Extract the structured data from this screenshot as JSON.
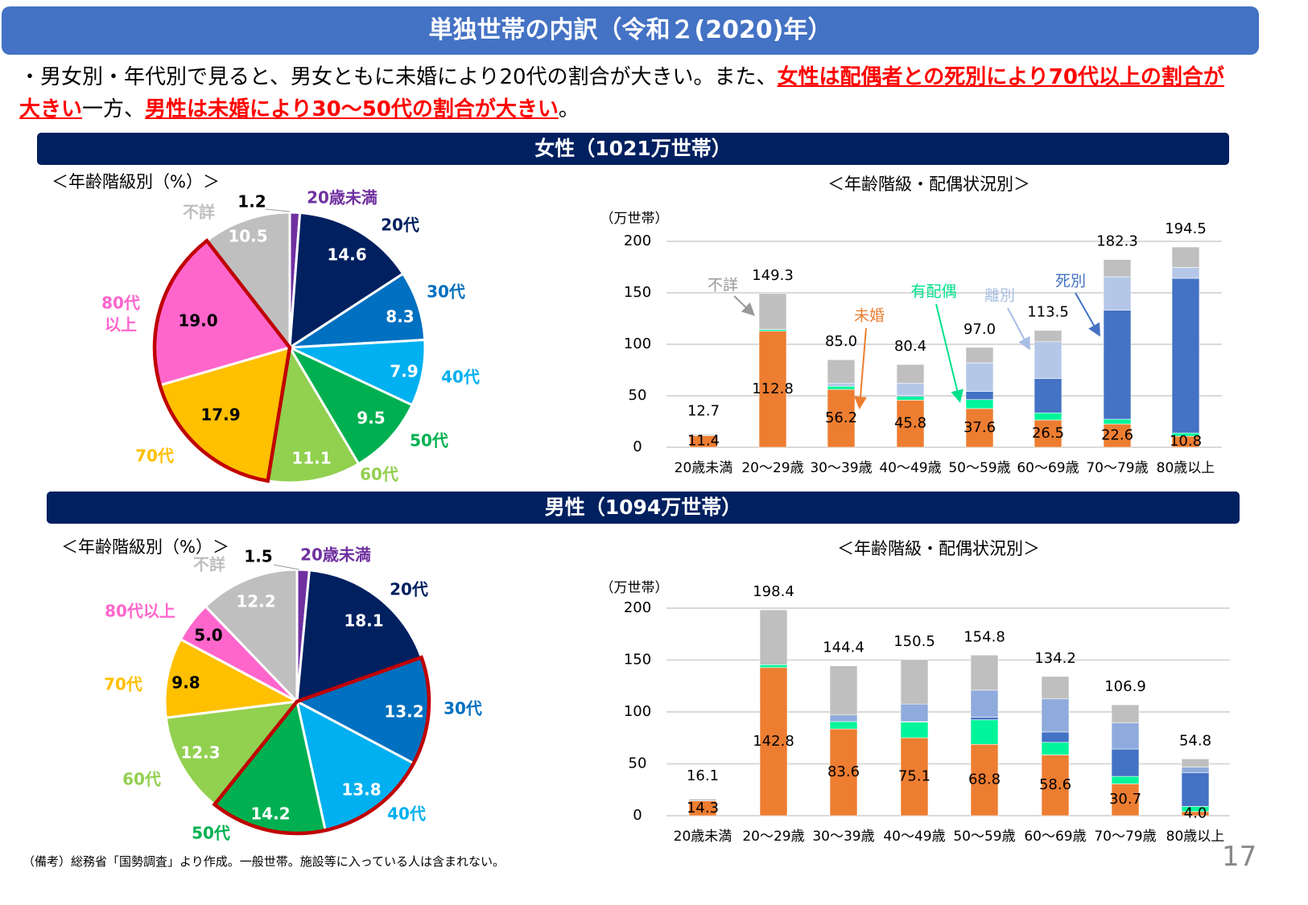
{
  "title": "単独世帯の内訳（令和２(2020)年）",
  "summary": {
    "plain1": "・男女別・年代別で見ると、男女ともに未婚により20代の割合が大きい。また、",
    "red1": "女性は配偶者との死別により70代以上の割合が大きい",
    "plain2": "一方、",
    "red2": "男性は未婚により30～50代の割合が大きい",
    "end": "。"
  },
  "female": {
    "header": "女性（1021万世帯）",
    "pie_title": "＜年齢階級別（%）＞",
    "bar_title": "＜年齢階級・配偶状況別＞",
    "unit": "（万世帯）"
  },
  "male": {
    "header": "男性（1094万世帯）",
    "pie_title": "＜年齢階級別（%）＞",
    "bar_title": "＜年齢階級・配偶状況別＞",
    "unit": "（万世帯）"
  },
  "footnote": "（備考）総務省「国勢調査」より作成。一般世帯。施設等に入っている人は含まれない。",
  "page_number": "17",
  "chart_data": [
    {
      "type": "pie",
      "title": "＜年齢階級別（%）＞",
      "highlighted": [
        "70代",
        "80代以上"
      ],
      "labels": [
        "20歳未満",
        "20代",
        "30代",
        "40代",
        "50代",
        "60代",
        "70代",
        "80代以上",
        "不詳"
      ],
      "values": [
        1.2,
        14.6,
        8.3,
        7.9,
        9.5,
        11.1,
        17.9,
        19.0,
        10.5
      ],
      "colors": [
        "#7030a0",
        "#002060",
        "#0070c0",
        "#00b0f0",
        "#00b050",
        "#92d050",
        "#ffc000",
        "#ff66cc",
        "#bfbfbf"
      ]
    },
    {
      "type": "bar",
      "stacked": true,
      "title": "＜年齢階級・配偶状況別＞",
      "ylabel": "（万世帯）",
      "ylim": [
        0,
        200
      ],
      "yticks": [
        0,
        50,
        100,
        150,
        200
      ],
      "grid": true,
      "categories": [
        "20歳未満",
        "20～29歳",
        "30～39歳",
        "40～49歳",
        "50～59歳",
        "60～69歳",
        "70～79歳",
        "80歳以上"
      ],
      "totals": [
        12.7,
        149.3,
        85.0,
        80.4,
        97.0,
        113.5,
        182.3,
        194.5
      ],
      "series": [
        {
          "name": "未婚",
          "color": "#ed7d31",
          "values": [
            11.4,
            112.8,
            56.2,
            45.8,
            37.6,
            26.5,
            22.6,
            10.8
          ]
        },
        {
          "name": "有配偶",
          "color": "#00f59a",
          "values": [
            0.3,
            1.5,
            3.0,
            3.6,
            8.7,
            6.9,
            4.7,
            3.1
          ]
        },
        {
          "name": "死別",
          "color": "#4472c4",
          "values": [
            0,
            0,
            0,
            1.0,
            7.9,
            33.4,
            105.9,
            150.2
          ]
        },
        {
          "name": "離別",
          "color": "#b4c7e7",
          "values": [
            0,
            0.2,
            3.1,
            11.9,
            27.8,
            35.7,
            32.4,
            10.6
          ]
        },
        {
          "name": "不詳",
          "color": "#bfbfbf",
          "values": [
            1.0,
            34.8,
            22.7,
            18.1,
            15.0,
            11.0,
            16.7,
            19.8
          ]
        }
      ]
    },
    {
      "type": "pie",
      "title": "＜年齢階級別（%）＞",
      "highlighted": [
        "30代",
        "40代",
        "50代"
      ],
      "labels": [
        "20歳未満",
        "20代",
        "30代",
        "40代",
        "50代",
        "60代",
        "70代",
        "80代以上",
        "不詳"
      ],
      "values": [
        1.5,
        18.1,
        13.2,
        13.8,
        14.2,
        12.3,
        9.8,
        5.0,
        12.2
      ],
      "colors": [
        "#7030a0",
        "#002060",
        "#0070c0",
        "#00b0f0",
        "#00b050",
        "#92d050",
        "#ffc000",
        "#ff66cc",
        "#bfbfbf"
      ]
    },
    {
      "type": "bar",
      "stacked": true,
      "title": "＜年齢階級・配偶状況別＞",
      "ylabel": "（万世帯）",
      "ylim": [
        0,
        200
      ],
      "yticks": [
        0,
        50,
        100,
        150,
        200
      ],
      "grid": true,
      "categories": [
        "20歳未満",
        "20～29歳",
        "30～39歳",
        "40～49歳",
        "50～59歳",
        "60～69歳",
        "70～79歳",
        "80歳以上"
      ],
      "totals": [
        16.1,
        198.4,
        144.4,
        150.5,
        154.8,
        134.2,
        106.9,
        54.8
      ],
      "series": [
        {
          "color": "#ed7d31",
          "values": [
            14.3,
            142.8,
            83.6,
            75.1,
            68.8,
            58.6,
            30.7,
            4.0
          ]
        },
        {
          "color": "#00f59a",
          "values": [
            0,
            2.7,
            7.1,
            15.1,
            23.6,
            12.1,
            7.2,
            5.0
          ]
        },
        {
          "color": "#4472c4",
          "values": [
            0,
            0,
            0,
            0.5,
            2.5,
            10.0,
            26.4,
            32.3
          ]
        },
        {
          "color": "#8faadc",
          "values": [
            0,
            0,
            6.4,
            16.9,
            26.1,
            31.9,
            25.1,
            5.5
          ]
        },
        {
          "color": "#bfbfbf",
          "values": [
            1.8,
            52.9,
            47.3,
            42.9,
            33.8,
            21.6,
            17.5,
            8.0
          ]
        }
      ]
    }
  ]
}
